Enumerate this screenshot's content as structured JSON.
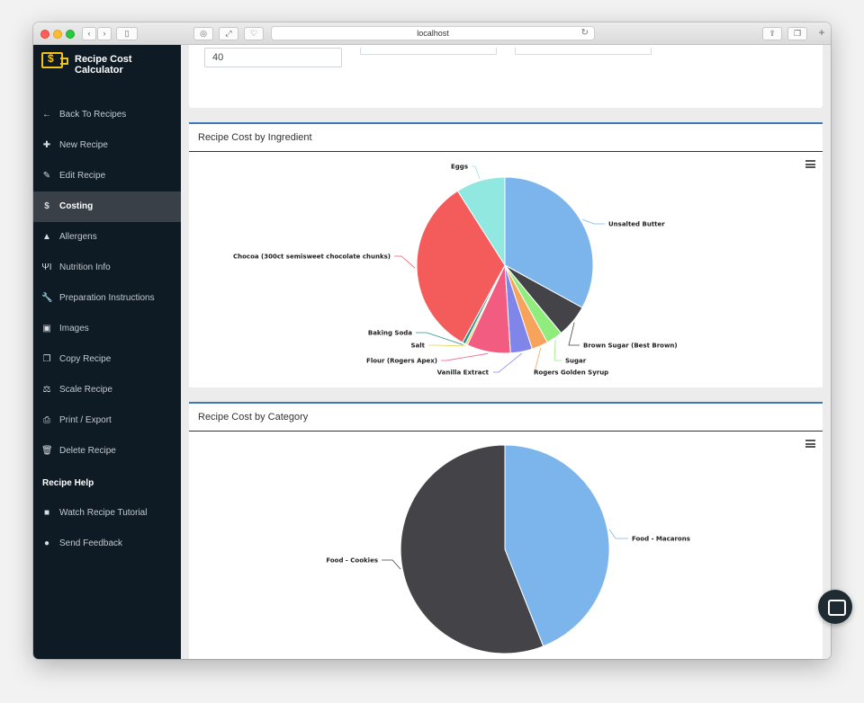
{
  "browser": {
    "address": "localhost"
  },
  "sidebar": {
    "brand": "Recipe Cost Calculator",
    "items": [
      {
        "label": "Back To Recipes",
        "icon": "arrow-left-icon",
        "glyph": "←"
      },
      {
        "label": "New Recipe",
        "icon": "plus-square-icon",
        "glyph": "✚"
      },
      {
        "label": "Edit Recipe",
        "icon": "pencil-icon",
        "glyph": "✎"
      },
      {
        "label": "Costing",
        "icon": "dollar-icon",
        "glyph": "$",
        "active": true
      },
      {
        "label": "Allergens",
        "icon": "warning-icon",
        "glyph": "▲"
      },
      {
        "label": "Nutrition Info",
        "icon": "utensils-icon",
        "glyph": "ΨΙ"
      },
      {
        "label": "Preparation Instructions",
        "icon": "wrench-icon",
        "glyph": "🔧"
      },
      {
        "label": "Images",
        "icon": "image-icon",
        "glyph": "▣"
      },
      {
        "label": "Copy Recipe",
        "icon": "copy-icon",
        "glyph": "❐"
      },
      {
        "label": "Scale Recipe",
        "icon": "balance-scale-icon",
        "glyph": "⚖"
      },
      {
        "label": "Print / Export",
        "icon": "print-icon",
        "glyph": "⎙"
      },
      {
        "label": "Delete Recipe",
        "icon": "trash-icon",
        "glyph": "🗑"
      }
    ],
    "help_heading": "Recipe Help",
    "help_items": [
      {
        "label": "Watch Recipe Tutorial",
        "icon": "video-icon",
        "glyph": "■"
      },
      {
        "label": "Send Feedback",
        "icon": "comment-icon",
        "glyph": "●"
      }
    ]
  },
  "main": {
    "quantity_value": "40"
  },
  "chart_data": [
    {
      "type": "pie",
      "title": "Recipe Cost by Ingredient",
      "categories": [
        "Unsalted Butter",
        "Brown Sugar (Best Brown)",
        "Sugar",
        "Rogers Golden Syrup",
        "Vanilla Extract",
        "Flour (Rogers Apex)",
        "Salt",
        "Baking Soda",
        "Chocoa (300ct semisweet chocolate chunks)",
        "Eggs"
      ],
      "values": [
        33.0,
        6.0,
        3.0,
        3.0,
        4.0,
        8.0,
        0.4,
        0.6,
        33.0,
        9.0
      ],
      "colors": [
        "#7cb5ec",
        "#434348",
        "#90ed7d",
        "#f7a35c",
        "#8085e9",
        "#f15c80",
        "#e4d354",
        "#2b908f",
        "#f45b5b",
        "#91e8e1"
      ]
    },
    {
      "type": "pie",
      "title": "Recipe Cost by Category",
      "categories": [
        "Food - Macarons",
        "Food - Cookies"
      ],
      "values": [
        44,
        56
      ],
      "colors": [
        "#7cb5ec",
        "#434348"
      ]
    }
  ]
}
